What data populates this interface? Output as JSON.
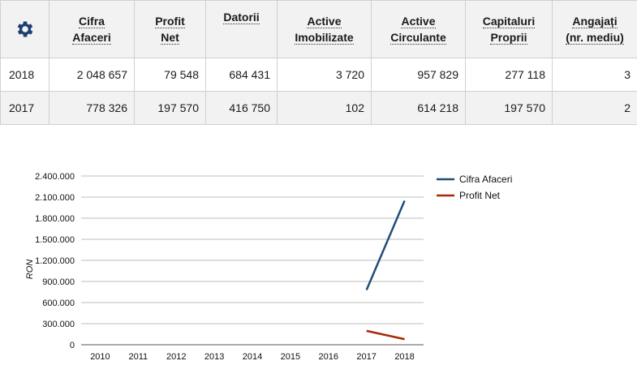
{
  "table": {
    "settings_icon": "gear-icon",
    "headers": [
      [
        "Cifra",
        "Afaceri"
      ],
      [
        "Profit",
        "Net"
      ],
      [
        "Datorii"
      ],
      [
        "Active",
        "Imobilizate"
      ],
      [
        "Active",
        "Circulante"
      ],
      [
        "Capitaluri",
        "Proprii"
      ],
      [
        "Angajați",
        "(nr. mediu)"
      ]
    ],
    "rows": [
      {
        "year": "2018",
        "cells": [
          "2 048 657",
          "79 548",
          "684 431",
          "3 720",
          "957 829",
          "277 118",
          "3"
        ]
      },
      {
        "year": "2017",
        "cells": [
          "778 326",
          "197 570",
          "416 750",
          "102",
          "614 218",
          "197 570",
          "2"
        ]
      }
    ]
  },
  "chart_data": {
    "type": "line",
    "ylabel": "RON",
    "xlabel": "",
    "categories": [
      "2010",
      "2011",
      "2012",
      "2013",
      "2014",
      "2015",
      "2016",
      "2017",
      "2018"
    ],
    "yticks": [
      "0",
      "300.000",
      "600.000",
      "900.000",
      "1.200.000",
      "1.500.000",
      "1.800.000",
      "2.100.000",
      "2.400.000"
    ],
    "ylim": [
      0,
      2400000
    ],
    "grid": true,
    "legend_position": "right",
    "series": [
      {
        "name": "Cifra Afaceri",
        "color": "#1f4e79",
        "values": [
          null,
          null,
          null,
          null,
          null,
          null,
          null,
          778326,
          2048657
        ]
      },
      {
        "name": "Profit Net",
        "color": "#a52a0a",
        "values": [
          null,
          null,
          null,
          null,
          null,
          null,
          null,
          197570,
          79548
        ]
      }
    ]
  }
}
